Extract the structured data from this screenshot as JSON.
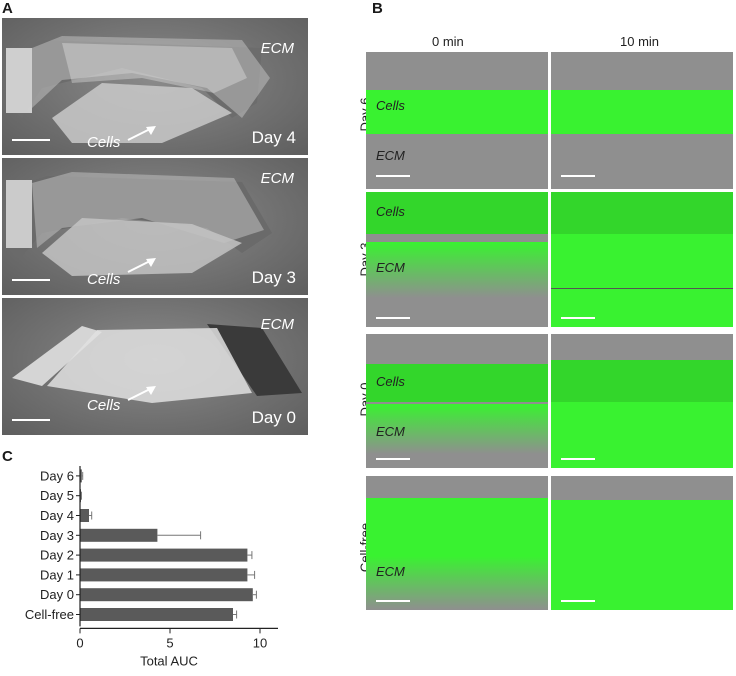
{
  "panels": {
    "a_label": "A",
    "b_label": "B",
    "c_label": "C"
  },
  "panel_a": {
    "images": [
      {
        "ecm": "ECM",
        "cells": "Cells",
        "day": "Day 4"
      },
      {
        "ecm": "ECM",
        "cells": "Cells",
        "day": "Day 3"
      },
      {
        "ecm": "ECM",
        "cells": "Cells",
        "day": "Day 0"
      }
    ]
  },
  "panel_b": {
    "columns": [
      "0 min",
      "10 min"
    ],
    "rows": [
      {
        "label": "Day 6",
        "cells": "Cells",
        "ecm": "ECM"
      },
      {
        "label": "Day 3",
        "cells": "Cells",
        "ecm": "ECM"
      },
      {
        "label": "Day 0",
        "cells": "Cells",
        "ecm": "ECM"
      },
      {
        "label": "Cell-free",
        "ecm": "ECM"
      }
    ],
    "colors": {
      "fluor": "#39f230",
      "gray": "#8f8f8f"
    }
  },
  "chart_data": {
    "type": "bar",
    "orientation": "horizontal",
    "categories": [
      "Day 6",
      "Day 5",
      "Day 4",
      "Day 3",
      "Day 2",
      "Day 1",
      "Day 0",
      "Cell-free"
    ],
    "values": [
      0.1,
      0.05,
      0.5,
      4.3,
      9.3,
      9.3,
      9.6,
      8.5
    ],
    "errors": [
      0.05,
      0.03,
      0.15,
      2.4,
      0.25,
      0.4,
      0.2,
      0.2
    ],
    "xlabel": "Total  AUC",
    "xlim": [
      0,
      11
    ],
    "xticks": [
      0,
      5,
      10
    ],
    "bar_color": "#5a5a5a"
  }
}
